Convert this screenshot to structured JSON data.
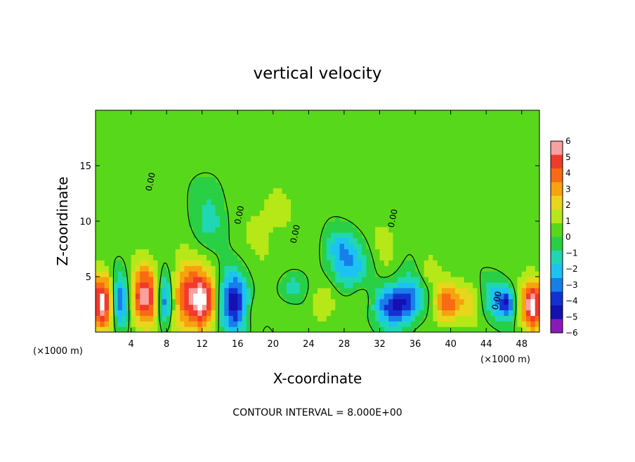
{
  "chart_data": {
    "type": "heatmap",
    "title": "vertical velocity",
    "xlabel": "X-coordinate",
    "ylabel": "Z-coordinate",
    "x_unit_label": "(×1000 m)",
    "xlim": [
      0,
      50
    ],
    "ylim": [
      0,
      20
    ],
    "x_ticks": [
      4,
      8,
      12,
      16,
      20,
      24,
      28,
      32,
      36,
      40,
      44,
      48
    ],
    "y_ticks": [
      5,
      10,
      15
    ],
    "footer": "CONTOUR INTERVAL = 8.000E+00",
    "contour_label": "0.00",
    "colorbar": {
      "ticks": [
        "6",
        "5",
        "4",
        "3",
        "2",
        "1",
        "0",
        "−1",
        "−2",
        "−3",
        "−4",
        "−5",
        "−6"
      ],
      "colors": [
        "#f9a0a0",
        "#f03a2c",
        "#fa6a14",
        "#f6a30e",
        "#e8d61c",
        "#b6e818",
        "#58d81a",
        "#29cf45",
        "#1fd7b2",
        "#1cc3f2",
        "#187ee8",
        "#1430d2",
        "#1410b2",
        "#8a1ab8"
      ]
    },
    "field": {
      "background": 0.3,
      "features": [
        {
          "x": 0.8,
          "z": 2.8,
          "w": 1.3,
          "h": 2.6,
          "v": 6.5
        },
        {
          "x": 2.7,
          "z": 2.8,
          "w": 1.0,
          "h": 2.6,
          "v": -4.5
        },
        {
          "x": 5.5,
          "z": 3.2,
          "w": 1.5,
          "h": 2.8,
          "v": 6.2
        },
        {
          "x": 7.8,
          "z": 2.8,
          "w": 0.8,
          "h": 2.2,
          "v": -4.5
        },
        {
          "x": 10.0,
          "z": 3.4,
          "w": 1.4,
          "h": 3.2,
          "v": 3.8
        },
        {
          "x": 12.0,
          "z": 2.8,
          "w": 1.6,
          "h": 2.8,
          "v": 6.5
        },
        {
          "x": 15.5,
          "z": 2.6,
          "w": 1.6,
          "h": 2.8,
          "v": -6.0
        },
        {
          "x": 17.8,
          "z": 1.8,
          "w": 0.9,
          "h": 1.6,
          "v": 1.3
        },
        {
          "x": 13.0,
          "z": 10.0,
          "w": 2.0,
          "h": 2.5,
          "v": -1.6
        },
        {
          "x": 12.5,
          "z": 13.0,
          "w": 1.8,
          "h": 1.8,
          "v": -0.6
        },
        {
          "x": 19.5,
          "z": 10.0,
          "w": 4.0,
          "h": 5.0,
          "v": 0.9
        },
        {
          "x": 22.0,
          "z": 4.0,
          "w": 1.5,
          "h": 1.2,
          "v": -2.0
        },
        {
          "x": 25.5,
          "z": 2.6,
          "w": 1.4,
          "h": 2.0,
          "v": 1.8
        },
        {
          "x": 28.5,
          "z": 6.0,
          "w": 2.4,
          "h": 2.2,
          "v": -3.0
        },
        {
          "x": 27.5,
          "z": 8.0,
          "w": 1.6,
          "h": 1.5,
          "v": -1.8
        },
        {
          "x": 30.0,
          "z": 3.0,
          "w": 1.2,
          "h": 1.5,
          "v": 1.2
        },
        {
          "x": 33.5,
          "z": 2.4,
          "w": 2.0,
          "h": 1.8,
          "v": -4.8
        },
        {
          "x": 35.5,
          "z": 3.2,
          "w": 1.6,
          "h": 2.0,
          "v": -3.4
        },
        {
          "x": 32.5,
          "z": 8.0,
          "w": 1.4,
          "h": 2.6,
          "v": 1.2
        },
        {
          "x": 37.5,
          "z": 5.5,
          "w": 1.2,
          "h": 1.5,
          "v": 1.5
        },
        {
          "x": 39.5,
          "z": 2.6,
          "w": 1.4,
          "h": 1.8,
          "v": 4.8
        },
        {
          "x": 42.0,
          "z": 2.6,
          "w": 1.4,
          "h": 1.8,
          "v": 2.0
        },
        {
          "x": 45.0,
          "z": 3.0,
          "w": 1.4,
          "h": 1.8,
          "v": -2.8
        },
        {
          "x": 46.3,
          "z": 2.6,
          "w": 0.8,
          "h": 1.3,
          "v": -4.2
        },
        {
          "x": 49.2,
          "z": 2.4,
          "w": 1.2,
          "h": 2.4,
          "v": 6.5
        },
        {
          "x": 47.0,
          "z": 11.0,
          "w": 3.0,
          "h": 4.0,
          "v": 0.7
        },
        {
          "x": 5.0,
          "z": 15.0,
          "w": 5.0,
          "h": 4.0,
          "v": 0.5
        }
      ]
    }
  }
}
